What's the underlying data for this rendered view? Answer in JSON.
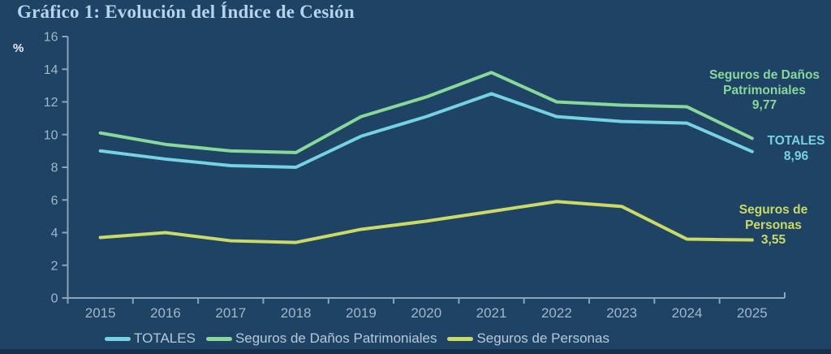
{
  "title": "Gráfico 1: Evolución del Índice de Cesión",
  "colors": {
    "background": "#1e4365",
    "bottom_bar": "#16304b",
    "title_text": "#b6d3ee",
    "axis": "#8ca3ba",
    "tick_label": "#a3b7c8",
    "ylabel_text": "#e6eef6",
    "legend_text": "#b6c9d8",
    "totales": "#76d1e3",
    "danos": "#88d89b",
    "personas": "#cada65"
  },
  "chart_data": {
    "type": "line",
    "title": "Gráfico 1: Evolución del Índice de Cesión",
    "ylabel": "%",
    "ylim": [
      0,
      16
    ],
    "ytick_step": 2,
    "grid": false,
    "legend_position": "bottom",
    "x": [
      "2015",
      "2016",
      "2017",
      "2018",
      "2019",
      "2020",
      "2021",
      "2022",
      "2023",
      "2024",
      "2025"
    ],
    "series": [
      {
        "name": "TOTALES",
        "color_key": "totales",
        "values": [
          9.0,
          8.5,
          8.1,
          8.0,
          9.9,
          11.1,
          12.5,
          11.1,
          10.8,
          10.7,
          8.96
        ],
        "end_label": "8,96"
      },
      {
        "name": "Seguros de Daños Patrimoniales",
        "color_key": "danos",
        "values": [
          10.1,
          9.4,
          9.0,
          8.9,
          11.1,
          12.3,
          13.8,
          12.0,
          11.8,
          11.7,
          9.77
        ],
        "end_label": "9,77"
      },
      {
        "name": "Seguros de Personas",
        "color_key": "personas",
        "values": [
          3.7,
          4.0,
          3.5,
          3.4,
          4.2,
          4.7,
          5.3,
          5.9,
          5.6,
          3.6,
          3.55
        ],
        "end_label": "3,55"
      }
    ]
  },
  "annotations": {
    "danos": {
      "line1": "Seguros de Daños",
      "line2": "Patrimoniales",
      "value": "9,77"
    },
    "totales": {
      "line1": "TOTALES",
      "value": "8,96"
    },
    "personas": {
      "line1": "Seguros de",
      "line2": "Personas",
      "value": "3,55"
    }
  }
}
